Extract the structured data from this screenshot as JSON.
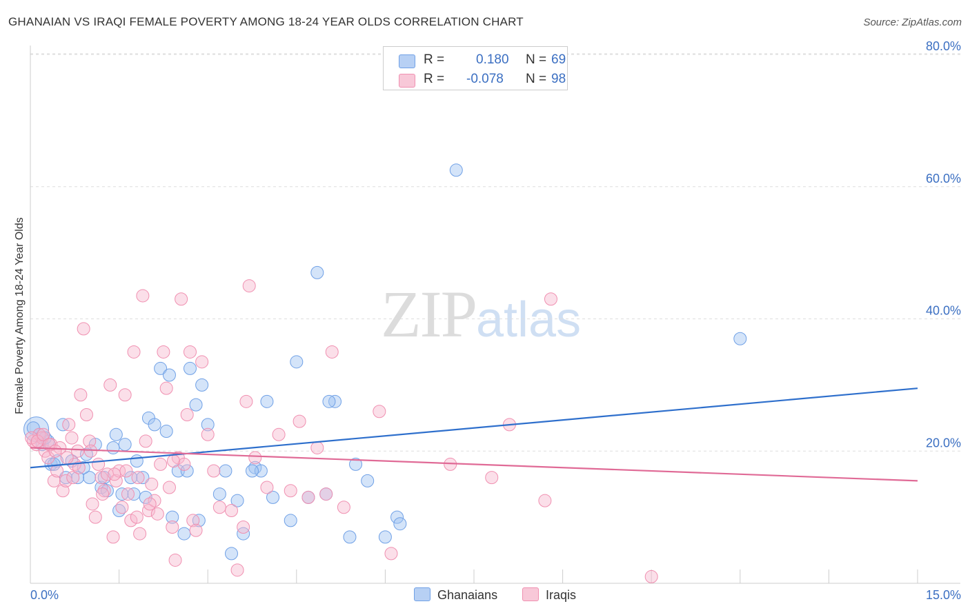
{
  "title": "GHANAIAN VS IRAQI FEMALE POVERTY AMONG 18-24 YEAR OLDS CORRELATION CHART",
  "source": "Source: ZipAtlas.com",
  "watermark": {
    "zip": "ZIP",
    "atlas": "atlas"
  },
  "legend": {
    "r_label": "R =",
    "n_label": "N =",
    "rows": [
      {
        "r": "0.180",
        "n": "69",
        "color": "#6fa0e6"
      },
      {
        "r": "-0.078",
        "n": "98",
        "color": "#f08fb0"
      }
    ]
  },
  "bottom_legend": [
    "Ghanaians",
    "Iraqis"
  ],
  "chart_data": {
    "type": "scatter",
    "title": "GHANAIAN VS IRAQI FEMALE POVERTY AMONG 18-24 YEAR OLDS CORRELATION CHART",
    "xlabel": "",
    "ylabel": "Female Poverty Among 18-24 Year Olds",
    "xlim": [
      0,
      15
    ],
    "ylim": [
      0,
      80
    ],
    "x_tick_labels": [
      "0.0%",
      "15.0%"
    ],
    "y_ticks": [
      20,
      40,
      60,
      80
    ],
    "y_tick_labels": [
      "20.0%",
      "40.0%",
      "60.0%",
      "80.0%"
    ],
    "grid": true,
    "legend_position": "top-center",
    "series": [
      {
        "name": "Ghanaians",
        "color": "#6fa0e6",
        "line_color": "#2e6fcc",
        "trend": {
          "x": [
            0,
            15
          ],
          "y": [
            17.5,
            29.5
          ]
        },
        "points": [
          [
            0.1,
            23.3
          ],
          [
            0.15,
            22.5
          ],
          [
            0.2,
            21.0
          ],
          [
            0.3,
            21.5
          ],
          [
            0.35,
            18.0
          ],
          [
            0.45,
            18.5
          ],
          [
            0.55,
            24.0
          ],
          [
            0.6,
            16.0
          ],
          [
            0.7,
            18.5
          ],
          [
            0.8,
            16.0
          ],
          [
            0.95,
            19.5
          ],
          [
            1.0,
            16.0
          ],
          [
            1.1,
            21.0
          ],
          [
            1.2,
            14.5
          ],
          [
            1.3,
            14.0
          ],
          [
            1.4,
            20.5
          ],
          [
            1.5,
            11.0
          ],
          [
            1.55,
            13.5
          ],
          [
            1.6,
            21.0
          ],
          [
            1.7,
            16.0
          ],
          [
            1.75,
            13.5
          ],
          [
            1.8,
            18.5
          ],
          [
            1.95,
            13.0
          ],
          [
            2.0,
            25.0
          ],
          [
            2.1,
            24.0
          ],
          [
            2.2,
            32.5
          ],
          [
            2.3,
            23.0
          ],
          [
            2.35,
            31.5
          ],
          [
            2.4,
            10.0
          ],
          [
            2.5,
            17.0
          ],
          [
            2.6,
            7.5
          ],
          [
            2.7,
            32.5
          ],
          [
            2.8,
            27.0
          ],
          [
            2.85,
            9.5
          ],
          [
            2.9,
            30.0
          ],
          [
            3.0,
            24.0
          ],
          [
            3.2,
            13.5
          ],
          [
            3.3,
            17.0
          ],
          [
            3.4,
            4.5
          ],
          [
            3.5,
            12.5
          ],
          [
            3.6,
            7.5
          ],
          [
            3.8,
            17.5
          ],
          [
            3.9,
            17.0
          ],
          [
            4.0,
            27.5
          ],
          [
            4.1,
            13.0
          ],
          [
            4.4,
            9.5
          ],
          [
            4.5,
            33.5
          ],
          [
            4.7,
            13.0
          ],
          [
            4.85,
            47.0
          ],
          [
            5.0,
            13.5
          ],
          [
            5.15,
            27.5
          ],
          [
            5.4,
            7.0
          ],
          [
            5.5,
            18.0
          ],
          [
            5.7,
            15.5
          ],
          [
            6.0,
            7.0
          ],
          [
            6.2,
            10.0
          ],
          [
            6.25,
            9.0
          ],
          [
            7.2,
            62.5
          ],
          [
            12.0,
            37.0
          ],
          [
            1.45,
            22.5
          ],
          [
            0.05,
            23.5
          ],
          [
            0.25,
            22.0
          ],
          [
            0.4,
            18.0
          ],
          [
            0.9,
            17.5
          ],
          [
            1.25,
            16.0
          ],
          [
            1.9,
            16.0
          ],
          [
            2.65,
            17.0
          ],
          [
            3.75,
            17.0
          ],
          [
            5.05,
            27.5
          ]
        ]
      },
      {
        "name": "Iraqis",
        "color": "#f08fb0",
        "line_color": "#e06a96",
        "trend": {
          "x": [
            0,
            15
          ],
          "y": [
            20.5,
            15.5
          ]
        },
        "points": [
          [
            0.05,
            21.5
          ],
          [
            0.1,
            21.0
          ],
          [
            0.15,
            22.5
          ],
          [
            0.2,
            22.0
          ],
          [
            0.25,
            20.0
          ],
          [
            0.3,
            19.0
          ],
          [
            0.35,
            21.0
          ],
          [
            0.4,
            15.5
          ],
          [
            0.45,
            17.0
          ],
          [
            0.5,
            20.5
          ],
          [
            0.55,
            14.0
          ],
          [
            0.6,
            15.5
          ],
          [
            0.65,
            24.0
          ],
          [
            0.7,
            22.0
          ],
          [
            0.75,
            18.0
          ],
          [
            0.8,
            20.0
          ],
          [
            0.85,
            28.5
          ],
          [
            0.9,
            38.5
          ],
          [
            0.95,
            25.5
          ],
          [
            1.0,
            21.5
          ],
          [
            1.05,
            12.0
          ],
          [
            1.1,
            10.0
          ],
          [
            1.15,
            18.0
          ],
          [
            1.2,
            16.0
          ],
          [
            1.25,
            14.0
          ],
          [
            1.3,
            16.5
          ],
          [
            1.35,
            30.0
          ],
          [
            1.4,
            7.0
          ],
          [
            1.45,
            15.5
          ],
          [
            1.5,
            17.0
          ],
          [
            1.55,
            11.5
          ],
          [
            1.6,
            28.5
          ],
          [
            1.65,
            13.5
          ],
          [
            1.7,
            9.5
          ],
          [
            1.75,
            35.0
          ],
          [
            1.8,
            10.0
          ],
          [
            1.85,
            7.5
          ],
          [
            1.9,
            43.5
          ],
          [
            1.95,
            21.5
          ],
          [
            2.0,
            11.0
          ],
          [
            2.05,
            15.0
          ],
          [
            2.1,
            12.5
          ],
          [
            2.15,
            10.5
          ],
          [
            2.2,
            18.0
          ],
          [
            2.25,
            35.0
          ],
          [
            2.3,
            29.5
          ],
          [
            2.35,
            14.5
          ],
          [
            2.4,
            8.5
          ],
          [
            2.45,
            3.5
          ],
          [
            2.5,
            19.0
          ],
          [
            2.55,
            43.0
          ],
          [
            2.6,
            18.0
          ],
          [
            2.65,
            25.5
          ],
          [
            2.7,
            35.0
          ],
          [
            2.75,
            9.5
          ],
          [
            2.8,
            8.0
          ],
          [
            2.9,
            33.5
          ],
          [
            3.0,
            22.5
          ],
          [
            3.1,
            17.0
          ],
          [
            3.2,
            11.5
          ],
          [
            3.4,
            11.0
          ],
          [
            3.5,
            2.0
          ],
          [
            3.6,
            8.5
          ],
          [
            3.65,
            27.5
          ],
          [
            3.7,
            45.0
          ],
          [
            3.8,
            19.0
          ],
          [
            4.0,
            14.5
          ],
          [
            4.2,
            22.5
          ],
          [
            4.4,
            14.0
          ],
          [
            4.55,
            24.5
          ],
          [
            4.7,
            13.0
          ],
          [
            4.85,
            20.5
          ],
          [
            5.0,
            13.5
          ],
          [
            5.1,
            35.0
          ],
          [
            5.3,
            11.5
          ],
          [
            5.9,
            26.0
          ],
          [
            6.1,
            4.5
          ],
          [
            7.1,
            18.0
          ],
          [
            7.8,
            16.0
          ],
          [
            8.1,
            24.0
          ],
          [
            8.7,
            12.5
          ],
          [
            8.8,
            43.0
          ],
          [
            10.5,
            1.0
          ],
          [
            0.02,
            22.0
          ],
          [
            0.12,
            21.5
          ],
          [
            0.22,
            22.5
          ],
          [
            0.32,
            21.0
          ],
          [
            0.42,
            20.0
          ],
          [
            0.62,
            19.0
          ],
          [
            0.72,
            16.0
          ],
          [
            0.82,
            17.5
          ],
          [
            1.02,
            20.0
          ],
          [
            1.22,
            13.5
          ],
          [
            1.42,
            16.5
          ],
          [
            1.62,
            17.0
          ],
          [
            1.82,
            16.0
          ],
          [
            2.02,
            12.0
          ],
          [
            2.42,
            18.5
          ]
        ]
      }
    ]
  }
}
